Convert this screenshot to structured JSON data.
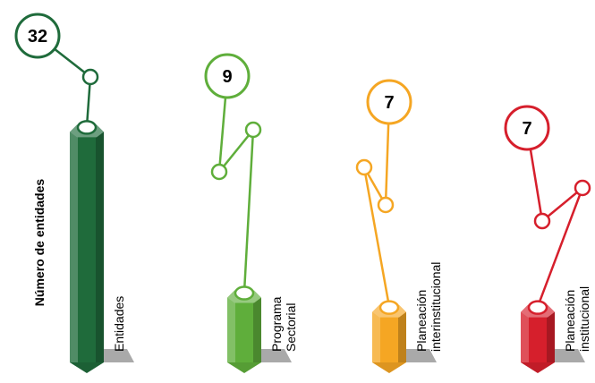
{
  "chart_data": {
    "type": "bar",
    "ylabel": "Número de entidades",
    "categories": [
      "Entidades",
      "Programa Sectorial",
      "Planeación interinstitucional",
      "Planeación institucional"
    ],
    "values": [
      32,
      9,
      7,
      7
    ],
    "grid": false,
    "legend": "none",
    "colors": {
      "Entidades": "#1f6b3b",
      "Programa Sectorial": "#5fae3b",
      "Planeación interinstitucional": "#f5a623",
      "Planeación institucional": "#d61f2c"
    },
    "shadow_color": "#9a9a9a"
  }
}
